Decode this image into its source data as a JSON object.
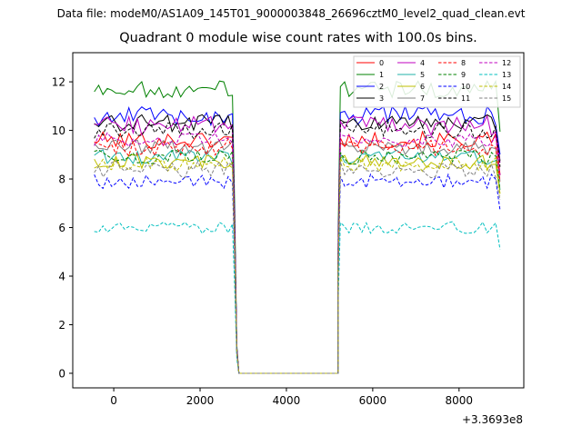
{
  "suptitle": "Data file: modeM0/AS1A09_145T01_9000003848_26696cztM0_level2_quad_clean.evt",
  "chart_data": {
    "type": "line",
    "title": "Quadrant 0 module wise count rates with 100.0s bins.",
    "xlabel": "",
    "ylabel": "",
    "x_offset_label": "+3.3693e8",
    "xlim": [
      -950,
      9500
    ],
    "ylim": [
      -0.6,
      13.2
    ],
    "xticks": [
      0,
      2000,
      4000,
      6000,
      8000
    ],
    "xtick_labels": [
      "0",
      "2000",
      "4000",
      "6000",
      "8000"
    ],
    "yticks": [
      0,
      2,
      4,
      6,
      8,
      10,
      12
    ],
    "ytick_labels": [
      "0",
      "2",
      "4",
      "6",
      "8",
      "10",
      "12"
    ],
    "legend_position": "top-right",
    "legend_columns": 4,
    "bin_width": 100,
    "segments": [
      {
        "start": -450,
        "end": 2750
      },
      {
        "start": 5250,
        "end": 8950
      }
    ],
    "gap": {
      "start": 2900,
      "end": 5200,
      "value": 0
    },
    "series": [
      {
        "name": "0",
        "color": "#ff0000",
        "dash": "solid",
        "level": 9.6,
        "noise": 0.35
      },
      {
        "name": "1",
        "color": "#008000",
        "dash": "solid",
        "level": 11.7,
        "noise": 0.35
      },
      {
        "name": "2",
        "color": "#0000ff",
        "dash": "solid",
        "level": 10.6,
        "noise": 0.4
      },
      {
        "name": "3",
        "color": "#000000",
        "dash": "solid",
        "level": 10.3,
        "noise": 0.35
      },
      {
        "name": "4",
        "color": "#bf00bf",
        "dash": "solid",
        "level": 10.2,
        "noise": 0.4
      },
      {
        "name": "5",
        "color": "#20b2aa",
        "dash": "solid",
        "level": 8.9,
        "noise": 0.3
      },
      {
        "name": "6",
        "color": "#bfbf00",
        "dash": "solid",
        "level": 8.7,
        "noise": 0.3
      },
      {
        "name": "7",
        "color": "#808080",
        "dash": "solid",
        "level": 9.3,
        "noise": 0.3
      },
      {
        "name": "8",
        "color": "#ff0000",
        "dash": "dashed",
        "level": 9.3,
        "noise": 0.35
      },
      {
        "name": "9",
        "color": "#008000",
        "dash": "dashed",
        "level": 8.9,
        "noise": 0.3
      },
      {
        "name": "10",
        "color": "#0000ff",
        "dash": "dashed",
        "level": 7.9,
        "noise": 0.3
      },
      {
        "name": "11",
        "color": "#000000",
        "dash": "dashed",
        "level": 10.0,
        "noise": 0.35
      },
      {
        "name": "12",
        "color": "#bf00bf",
        "dash": "dashed",
        "level": 9.6,
        "noise": 0.3
      },
      {
        "name": "13",
        "color": "#00bfbf",
        "dash": "dashed",
        "level": 6.0,
        "noise": 0.25
      },
      {
        "name": "14",
        "color": "#bfbf00",
        "dash": "dashed",
        "level": 8.6,
        "noise": 0.3
      },
      {
        "name": "15",
        "color": "#808080",
        "dash": "dashed",
        "level": 8.4,
        "noise": 0.35
      }
    ]
  }
}
